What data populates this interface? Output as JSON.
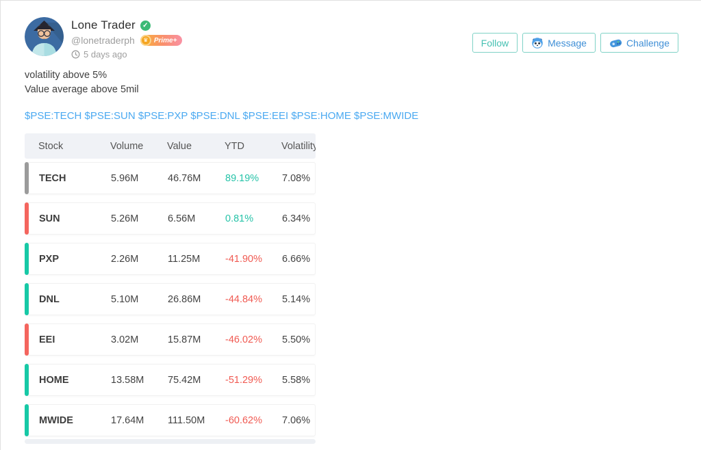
{
  "user": {
    "name": "Lone Trader",
    "handle": "@lonetraderph",
    "badge": "Prime+",
    "time": "5 days ago"
  },
  "actions": {
    "follow": "Follow",
    "message": "Message",
    "challenge": "Challenge"
  },
  "post": {
    "line1": "volatility above 5%",
    "line2": "Value average above 5mil",
    "tags": "$PSE:TECH $PSE:SUN $PSE:PXP $PSE:DNL $PSE:EEI $PSE:HOME $PSE:MWIDE"
  },
  "table": {
    "headers": [
      "Stock",
      "Volume",
      "Value",
      "YTD",
      "Volatility"
    ],
    "rows": [
      {
        "stock": "TECH",
        "volume": "5.96M",
        "value": "46.76M",
        "ytd": "89.19%",
        "volatility": "7.08%",
        "accent": "gray"
      },
      {
        "stock": "SUN",
        "volume": "5.26M",
        "value": "6.56M",
        "ytd": "0.81%",
        "volatility": "6.34%",
        "accent": "red"
      },
      {
        "stock": "PXP",
        "volume": "2.26M",
        "value": "11.25M",
        "ytd": "-41.90%",
        "volatility": "6.66%",
        "accent": "teal"
      },
      {
        "stock": "DNL",
        "volume": "5.10M",
        "value": "26.86M",
        "ytd": "-44.84%",
        "volatility": "5.14%",
        "accent": "teal"
      },
      {
        "stock": "EEI",
        "volume": "3.02M",
        "value": "15.87M",
        "ytd": "-46.02%",
        "volatility": "5.50%",
        "accent": "red"
      },
      {
        "stock": "HOME",
        "volume": "13.58M",
        "value": "75.42M",
        "ytd": "-51.29%",
        "volatility": "5.58%",
        "accent": "teal"
      },
      {
        "stock": "MWIDE",
        "volume": "17.64M",
        "value": "111.50M",
        "ytd": "-60.62%",
        "volatility": "7.06%",
        "accent": "teal"
      }
    ]
  },
  "colors": {
    "positive": "#26c3a8",
    "negative": "#f05a52",
    "accent_teal": "#17c9a6",
    "accent_red": "#f4655e",
    "accent_gray": "#9b9b9b",
    "tag_blue": "#4aa9f1",
    "button_teal": "#45c0b2",
    "button_blue": "#3e8ed6",
    "verified_green": "#3cba76"
  }
}
